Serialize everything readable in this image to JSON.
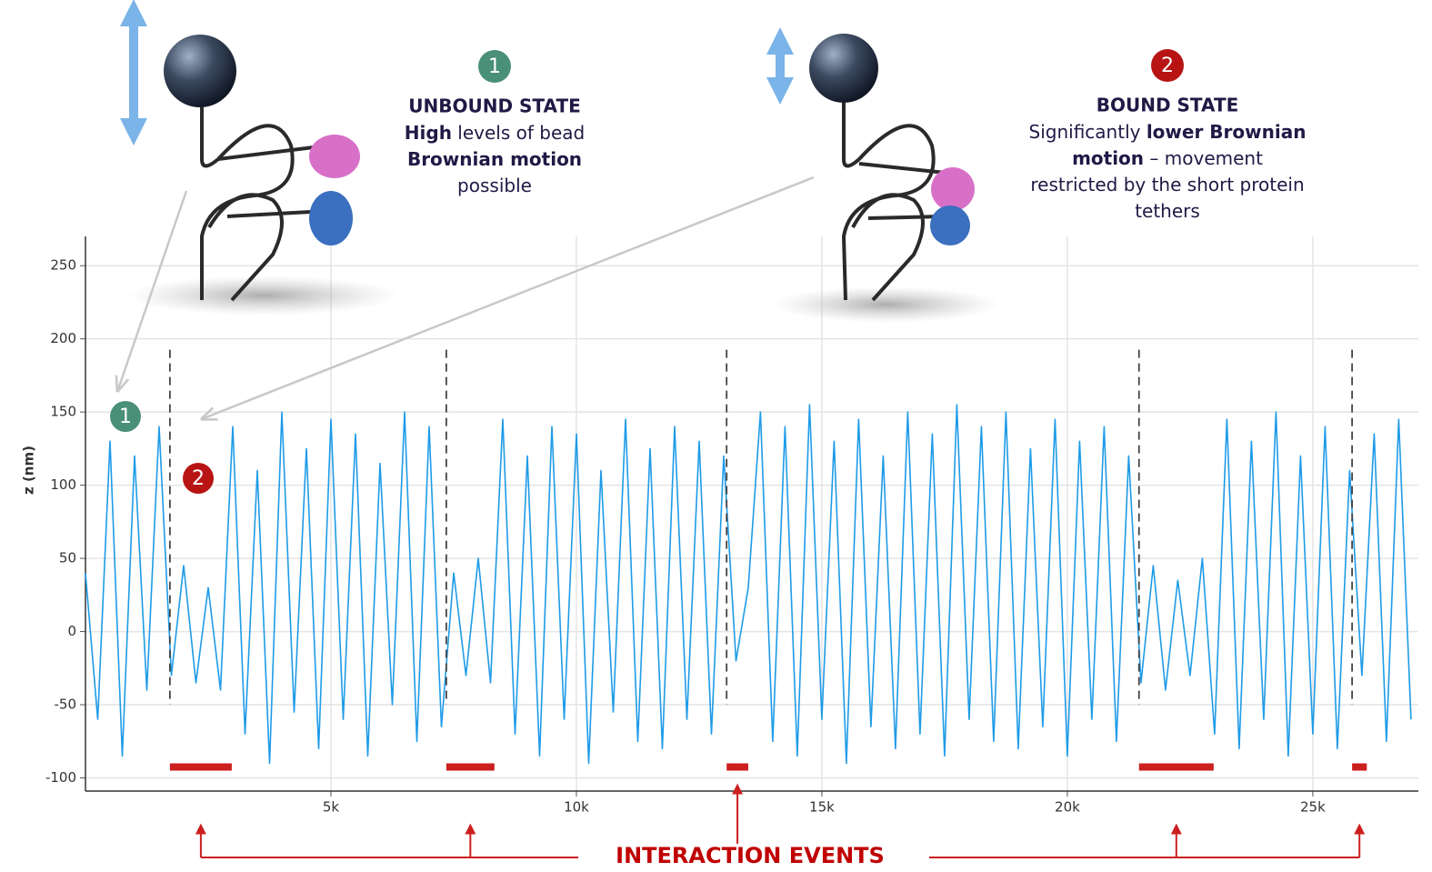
{
  "chart_data": {
    "type": "line",
    "y_label": "z (nm)",
    "color": "#1e9be8",
    "event_color": "#cc1f1f",
    "grid": true,
    "xlim": [
      0,
      27150
    ],
    "ylim": [
      -109,
      270
    ],
    "xticks": [
      {
        "value": 5000,
        "label": "5k"
      },
      {
        "value": 10000,
        "label": "10k"
      },
      {
        "value": 15000,
        "label": "15k"
      },
      {
        "value": 20000,
        "label": "20k"
      },
      {
        "value": 25000,
        "label": "25k"
      }
    ],
    "yticks": [
      -100,
      -50,
      0,
      50,
      100,
      150,
      200,
      250
    ],
    "x": [
      0,
      250,
      500,
      750,
      1000,
      1250,
      1500,
      1750,
      2000,
      2250,
      2500,
      2750,
      3000,
      3250,
      3500,
      3750,
      4000,
      4250,
      4500,
      4750,
      5000,
      5250,
      5500,
      5750,
      6000,
      6250,
      6500,
      6750,
      7000,
      7250,
      7500,
      7750,
      8000,
      8250,
      8500,
      8750,
      9000,
      9250,
      9500,
      9750,
      10000,
      10250,
      10500,
      10750,
      11000,
      11250,
      11500,
      11750,
      12000,
      12250,
      12500,
      12750,
      13000,
      13250,
      13500,
      13750,
      14000,
      14250,
      14500,
      14750,
      15000,
      15250,
      15500,
      15750,
      16000,
      16250,
      16500,
      16750,
      17000,
      17250,
      17500,
      17750,
      18000,
      18250,
      18500,
      18750,
      19000,
      19250,
      19500,
      19750,
      20000,
      20250,
      20500,
      20750,
      21000,
      21250,
      21500,
      21750,
      22000,
      22250,
      22500,
      22750,
      23000,
      23250,
      23500,
      23750,
      24000,
      24250,
      24500,
      24750,
      25000,
      25250,
      25500,
      25750,
      26000,
      26250,
      26500,
      26750,
      27000
    ],
    "values": [
      40,
      -60,
      130,
      -85,
      120,
      -40,
      140,
      -30,
      45,
      -35,
      30,
      -40,
      140,
      -70,
      110,
      -90,
      150,
      -55,
      125,
      -80,
      145,
      -60,
      135,
      -85,
      115,
      -50,
      150,
      -75,
      140,
      -65,
      40,
      -30,
      50,
      -35,
      145,
      -70,
      120,
      -85,
      140,
      -60,
      135,
      -90,
      110,
      -55,
      145,
      -75,
      125,
      -80,
      140,
      -60,
      130,
      -70,
      120,
      -20,
      30,
      150,
      -75,
      140,
      -85,
      155,
      -60,
      130,
      -90,
      145,
      -65,
      120,
      -80,
      150,
      -70,
      135,
      -85,
      155,
      -60,
      140,
      -75,
      150,
      -80,
      125,
      -65,
      145,
      -85,
      130,
      -60,
      140,
      -75,
      120,
      -35,
      45,
      -40,
      35,
      -30,
      50,
      -70,
      145,
      -80,
      130,
      -60,
      150,
      -85,
      120,
      -70,
      140,
      -80,
      110,
      -30,
      135,
      -75,
      145,
      -60
    ],
    "events": [
      {
        "start": 1720,
        "end": 2980
      },
      {
        "start": 7350,
        "end": 8330
      },
      {
        "start": 13060,
        "end": 13500
      },
      {
        "start": 21460,
        "end": 22980
      },
      {
        "start": 25800,
        "end": 26100
      }
    ],
    "events_label": "INTERACTION EVENTS",
    "markers": [
      "1",
      "2"
    ],
    "unbound": {
      "title": "UNBOUND STATE",
      "lines": [
        [
          {
            "text": "High",
            "bold": true
          },
          {
            "text": " levels of bead"
          }
        ],
        [
          {
            "text": "Brownian motion",
            "bold": true
          }
        ],
        [
          {
            "text": "possible"
          }
        ]
      ]
    },
    "bound": {
      "title": "BOUND STATE",
      "lines": [
        [
          {
            "text": "Significantly "
          },
          {
            "text": "lower Brownian",
            "bold": true
          }
        ],
        [
          {
            "text": "motion",
            "bold": true
          },
          {
            "text": " – movement"
          }
        ],
        [
          {
            "text": "restricted by the short protein"
          }
        ],
        [
          {
            "text": "tethers"
          }
        ]
      ]
    }
  }
}
